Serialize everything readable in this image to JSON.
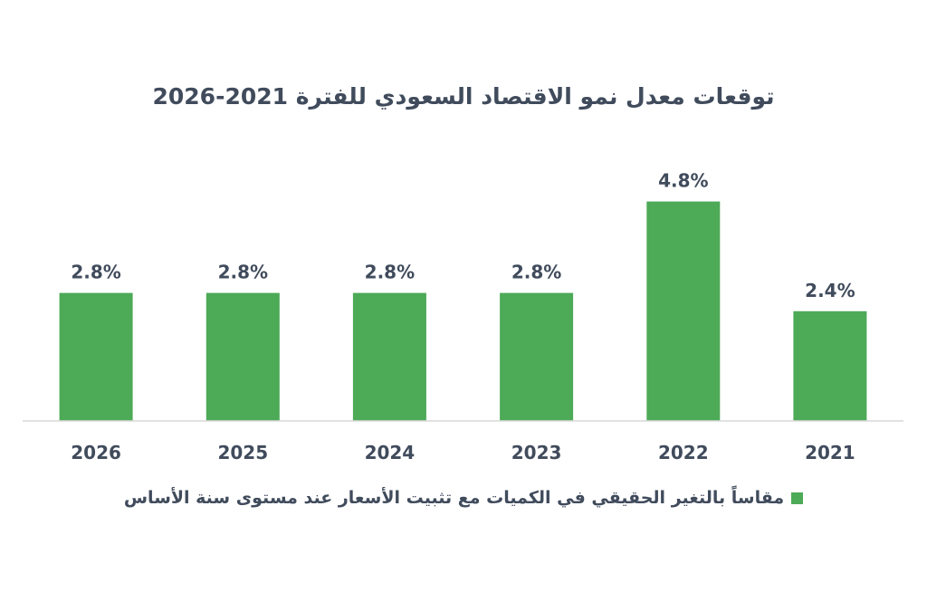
{
  "chart_data": {
    "type": "bar",
    "title": "توقعات معدل نمو الاقتصاد السعودي للفترة 2021-2026",
    "categories": [
      "2026",
      "2025",
      "2024",
      "2023",
      "2022",
      "2021"
    ],
    "series": [
      {
        "name": "مقاساً بالتغير الحقيقي في الكميات مع تثبيت الأسعار عند مستوى سنة الأساس",
        "values": [
          2.8,
          2.8,
          2.8,
          2.8,
          4.8,
          2.4
        ],
        "labels": [
          "2.8%",
          "2.8%",
          "2.8%",
          "2.8%",
          "4.8%",
          "2.4%"
        ]
      }
    ],
    "xlabel": "",
    "ylabel": "",
    "ylim": [
      0,
      6
    ],
    "grid": false,
    "legend_position": "bottom",
    "bar_color": "#4daa57"
  },
  "colors": {
    "bar": "#4daa57",
    "text": "#404b5c",
    "axis": "#d9d9d9"
  }
}
